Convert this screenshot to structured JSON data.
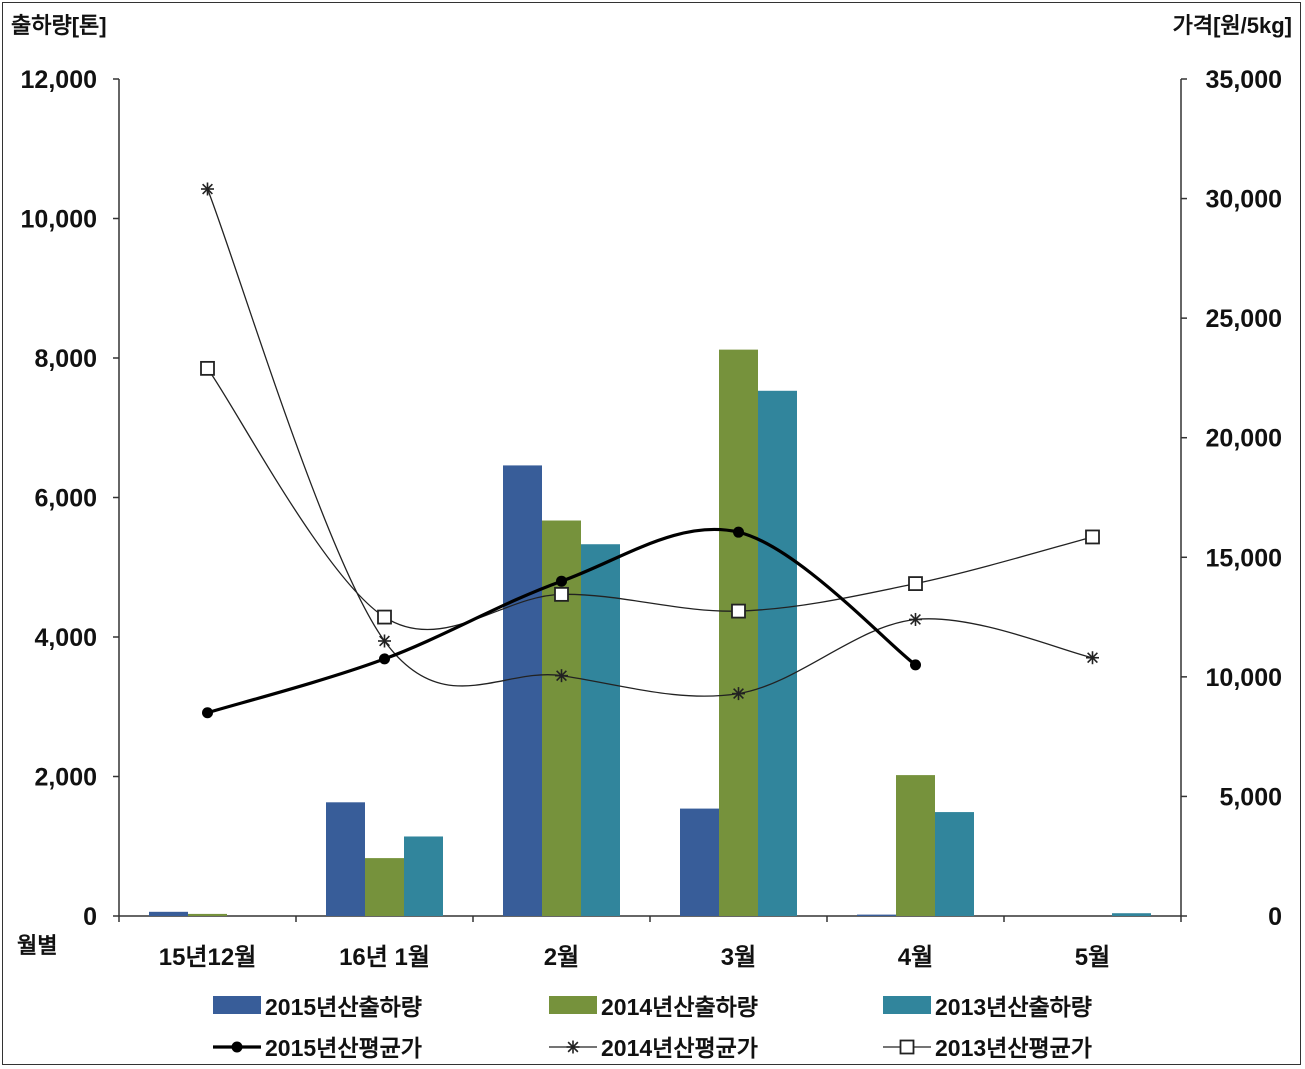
{
  "chart_data": {
    "type": "bar",
    "y_left_label": "출하량[톤]",
    "y_right_label": "가격[원/5kg]",
    "x_label": "월별",
    "categories": [
      "15년12월",
      "16년 1월",
      "2월",
      "3월",
      "4월",
      "5월"
    ],
    "y_left_ticks": [
      "0",
      "2,000",
      "4,000",
      "6,000",
      "8,000",
      "10,000",
      "12,000"
    ],
    "y_right_ticks": [
      "0",
      "5,000",
      "10,000",
      "15,000",
      "20,000",
      "25,000",
      "30,000",
      "35,000"
    ],
    "ylim_left": [
      0,
      12000
    ],
    "ylim_right": [
      0,
      35000
    ],
    "bar_series": [
      {
        "name": "2015년산출하량",
        "color": "#385d99",
        "values": [
          60,
          1630,
          6460,
          1540,
          20,
          0
        ]
      },
      {
        "name": "2014년산출하량",
        "color": "#76923c",
        "values": [
          30,
          830,
          5670,
          8120,
          2020,
          0
        ]
      },
      {
        "name": "2013년산출하량",
        "color": "#31859c",
        "values": [
          0,
          1140,
          5330,
          7530,
          1490,
          40
        ]
      }
    ],
    "line_series": [
      {
        "name": "2015년산평균가",
        "marker": "dot",
        "color": "#000000",
        "values": [
          8500,
          10750,
          14000,
          16050,
          10500,
          null
        ]
      },
      {
        "name": "2014년산평균가",
        "marker": "star",
        "color": "#222222",
        "values": [
          30400,
          11500,
          10050,
          9300,
          12400,
          10800
        ]
      },
      {
        "name": "2013년산평균가",
        "marker": "square",
        "color": "#222222",
        "values": [
          22900,
          12500,
          13450,
          12750,
          13900,
          15850
        ]
      }
    ],
    "grid": false,
    "legend_position": "bottom"
  }
}
